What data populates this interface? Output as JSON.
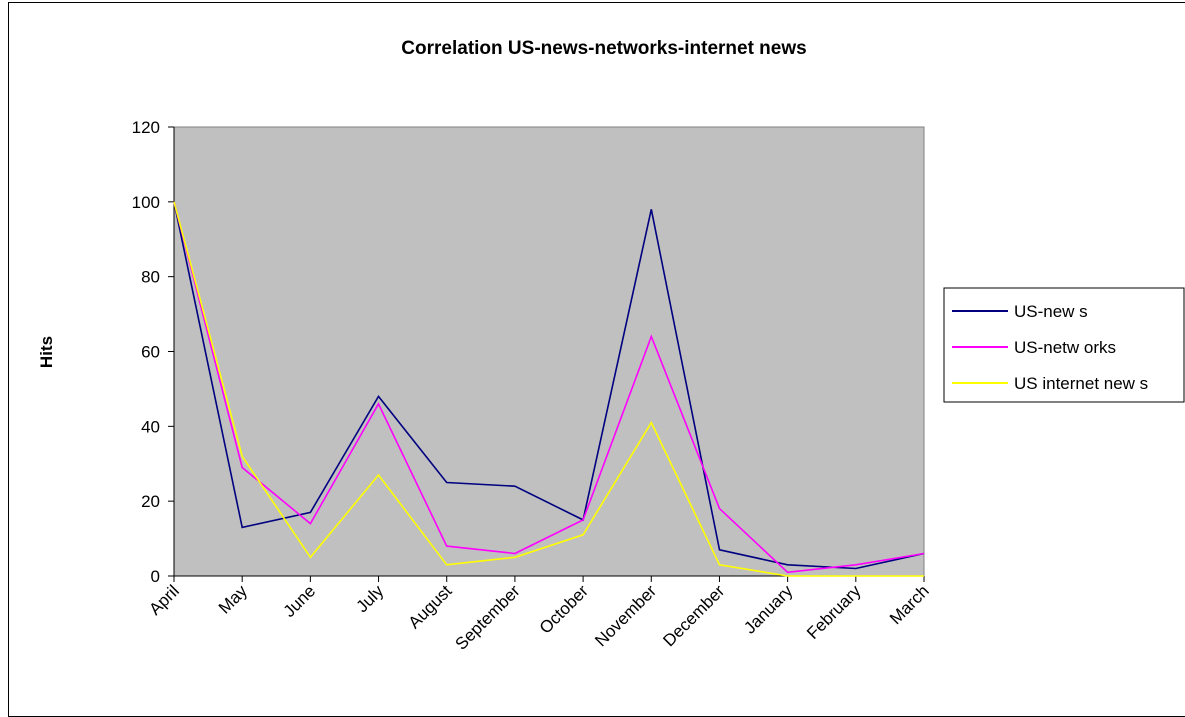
{
  "chart_data": {
    "type": "line",
    "title": "Correlation US-news-networks-internet news",
    "xlabel": "",
    "ylabel": "Hits",
    "categories": [
      "April",
      "May",
      "June",
      "July",
      "August",
      "September",
      "October",
      "November",
      "December",
      "January",
      "February",
      "March"
    ],
    "ylim": [
      0,
      120
    ],
    "yticks": [
      0,
      20,
      40,
      60,
      80,
      100,
      120
    ],
    "plot_background": "#c0c0c0",
    "grid": false,
    "legend_position": "right",
    "series": [
      {
        "name": "US-new s",
        "color": "#000080",
        "values": [
          100,
          13,
          17,
          48,
          25,
          24,
          15,
          98,
          7,
          3,
          2,
          6
        ]
      },
      {
        "name": "US-netw orks",
        "color": "#ff00ff",
        "values": [
          100,
          29,
          14,
          46,
          8,
          6,
          15,
          64,
          18,
          1,
          3,
          6
        ]
      },
      {
        "name": "US internet new s",
        "color": "#ffff00",
        "values": [
          100,
          32,
          5,
          27,
          3,
          5,
          11,
          41,
          3,
          0,
          0,
          0
        ]
      }
    ]
  }
}
